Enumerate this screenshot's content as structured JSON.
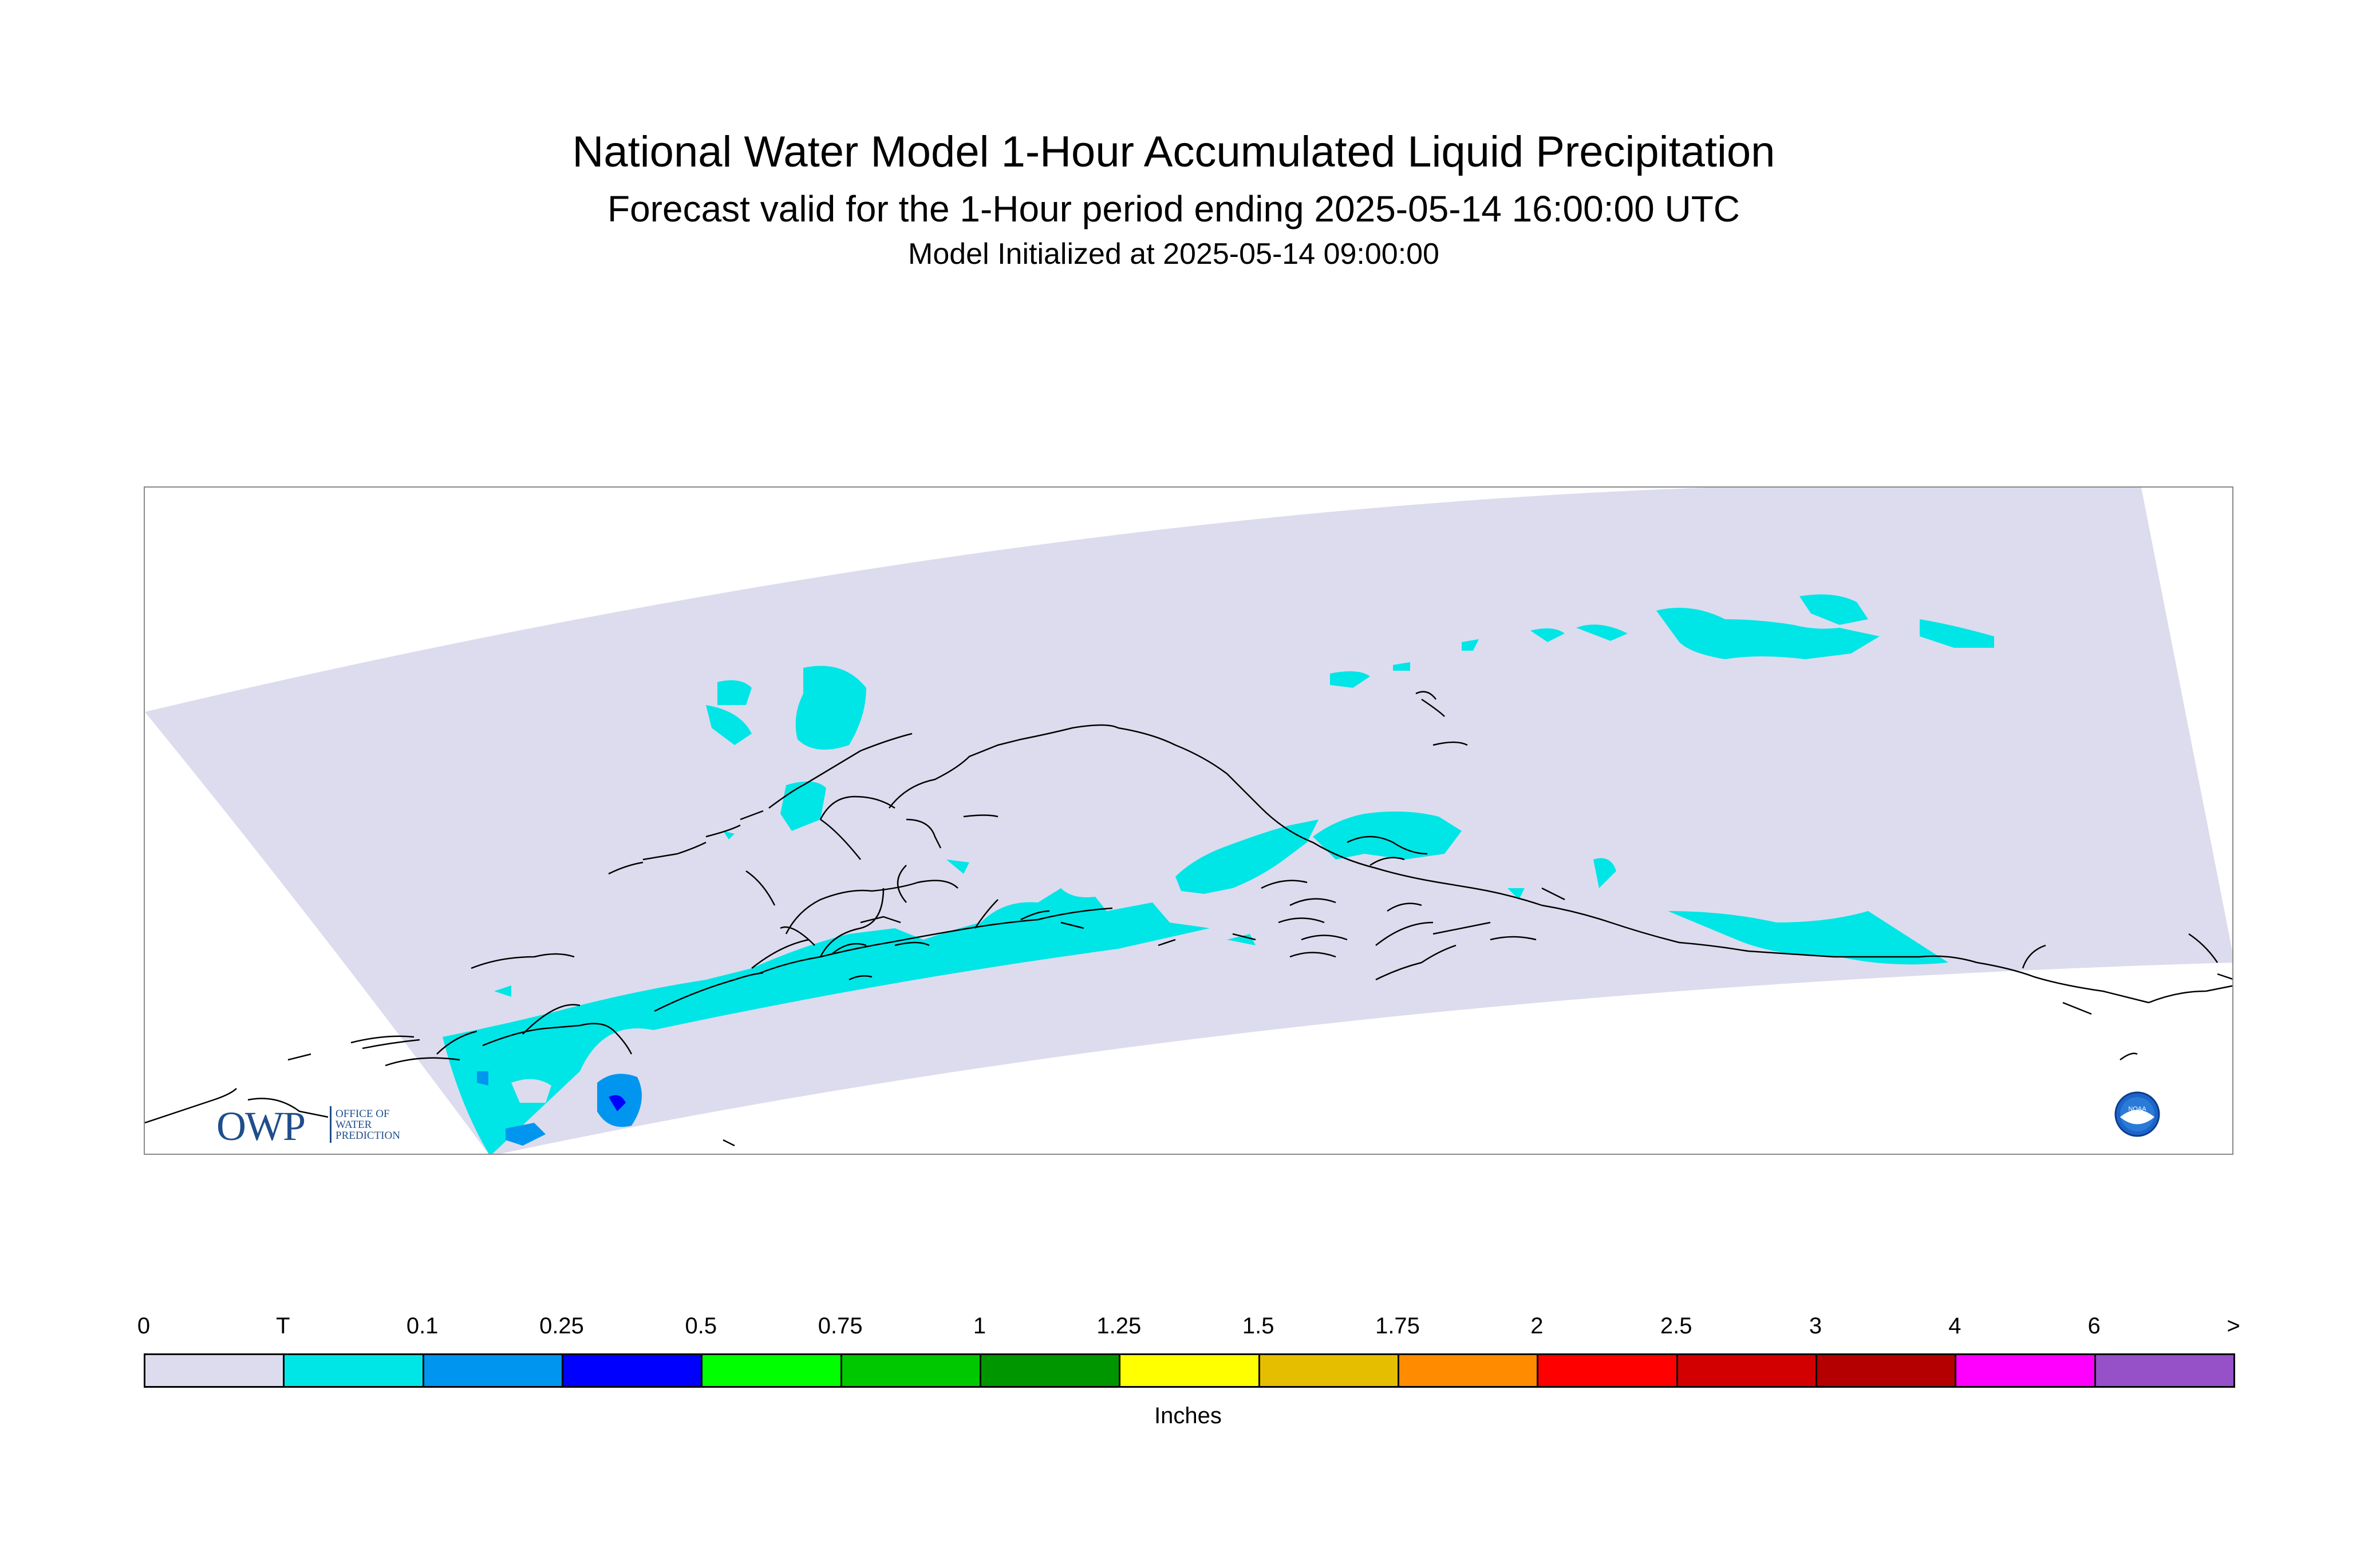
{
  "title": {
    "main": "National Water Model 1-Hour Accumulated Liquid Precipitation",
    "forecast": "Forecast valid for the 1-Hour period ending 2025-05-14 16:00:00 UTC",
    "init": "Model Initialized at 2025-05-14 09:00:00"
  },
  "map": {
    "domain_color": "#dcdcee",
    "trace_color": "#00e6e6",
    "light_blue_color": "#0096f0",
    "blue_color": "#0000ff",
    "coast_color": "#000000",
    "frame_color": "#888888"
  },
  "logos": {
    "owp_big": "OWP",
    "owp_line1": "OFFICE OF",
    "owp_line2": "WATER",
    "owp_line3": "PREDICTION",
    "noaa_text": "NOAA",
    "noaa_icon": "noaa-logo-icon"
  },
  "legend": {
    "ticks": [
      "0",
      "T",
      "0.1",
      "0.25",
      "0.5",
      "0.75",
      "1",
      "1.25",
      "1.5",
      "1.75",
      "2",
      "2.5",
      "3",
      "4",
      "6",
      ">"
    ],
    "colors": [
      "#dcdcee",
      "#00e6e6",
      "#0096f0",
      "#0000ff",
      "#00ff00",
      "#00c800",
      "#009600",
      "#ffff00",
      "#e6be00",
      "#ff8c00",
      "#ff0000",
      "#d20000",
      "#b40000",
      "#ff00ff",
      "#9650c8"
    ],
    "units": "Inches"
  }
}
